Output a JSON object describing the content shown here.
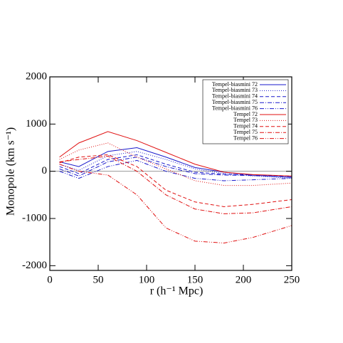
{
  "chart_data": {
    "type": "line",
    "xlabel": "r (h⁻¹ Mpc)",
    "ylabel": "Monopole (km s⁻¹)",
    "x": [
      10,
      30,
      60,
      90,
      120,
      150,
      180,
      210,
      250
    ],
    "xlim": [
      0,
      250
    ],
    "xticks": [
      0,
      50,
      100,
      150,
      200,
      250
    ],
    "ylim": [
      -2100,
      2000
    ],
    "yticks": [
      -2000,
      -1000,
      0,
      1000,
      2000
    ],
    "reference_line": 0,
    "legend": "upper right",
    "series": [
      {
        "name": "Tempel-biasmini 72",
        "color": "#1a1acc",
        "dash": "solid",
        "values": [
          200,
          100,
          420,
          500,
          300,
          80,
          -20,
          -80,
          -130
        ]
      },
      {
        "name": "Tempel-biasmini 73",
        "color": "#1a1acc",
        "dash": "dotted",
        "values": [
          150,
          20,
          330,
          420,
          250,
          50,
          -50,
          -100,
          -150
        ]
      },
      {
        "name": "Tempel-biasmini 74",
        "color": "#1a1acc",
        "dash": "dashed",
        "values": [
          100,
          -50,
          250,
          350,
          150,
          -20,
          -60,
          -80,
          -100
        ]
      },
      {
        "name": "Tempel-biasmini 75",
        "color": "#1a1acc",
        "dash": "dashdot",
        "values": [
          50,
          -100,
          200,
          300,
          100,
          -50,
          -80,
          -90,
          -120
        ]
      },
      {
        "name": "Tempel-biasmini 76",
        "color": "#1a1acc",
        "dash": "dashdotdot",
        "values": [
          0,
          -150,
          100,
          230,
          0,
          -150,
          -200,
          -180,
          -150
        ]
      },
      {
        "name": "Tempel 72",
        "color": "#e01010",
        "dash": "solid",
        "values": [
          300,
          600,
          840,
          650,
          400,
          150,
          -20,
          -70,
          -100
        ]
      },
      {
        "name": "Tempel 73",
        "color": "#e01010",
        "dash": "dotted",
        "values": [
          250,
          450,
          600,
          300,
          50,
          -200,
          -300,
          -300,
          -250
        ]
      },
      {
        "name": "Tempel 74",
        "color": "#e01010",
        "dash": "dashed",
        "values": [
          180,
          300,
          350,
          100,
          -400,
          -650,
          -750,
          -700,
          -600
        ]
      },
      {
        "name": "Tempel 75",
        "color": "#e01010",
        "dash": "dashdot",
        "values": [
          200,
          250,
          320,
          0,
          -500,
          -800,
          -900,
          -880,
          -750
        ]
      },
      {
        "name": "Tempel 76",
        "color": "#e01010",
        "dash": "dashdotdot",
        "values": [
          150,
          0,
          -80,
          -500,
          -1200,
          -1480,
          -1520,
          -1400,
          -1150
        ]
      }
    ]
  }
}
